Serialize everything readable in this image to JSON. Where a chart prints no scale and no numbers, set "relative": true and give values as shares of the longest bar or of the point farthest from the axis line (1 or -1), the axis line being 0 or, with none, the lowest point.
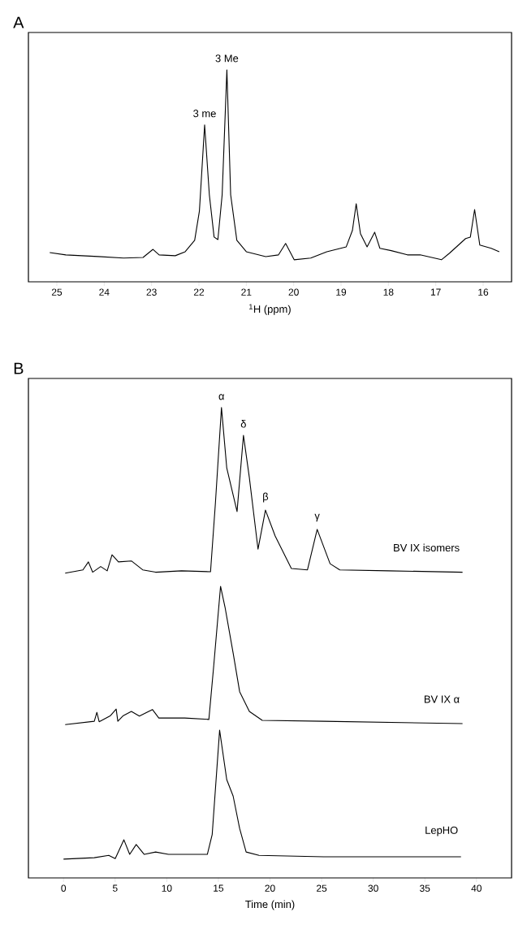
{
  "chart_data": [
    {
      "type": "line",
      "title": "A",
      "xlabel": "$^{1}$H (ppm)",
      "relative": true,
      "xlim": [
        25.6,
        15.4
      ],
      "xticks": [
        25,
        24,
        23,
        22,
        21,
        20,
        19,
        18,
        17,
        16
      ],
      "color": "#000000",
      "x": [
        25.15,
        24.81,
        24.13,
        23.59,
        23.18,
        22.97,
        22.84,
        22.5,
        22.29,
        22.09,
        21.99,
        21.88,
        21.78,
        21.68,
        21.6,
        21.51,
        21.41,
        21.33,
        21.2,
        21.0,
        20.59,
        20.32,
        20.17,
        19.99,
        19.64,
        19.3,
        18.89,
        18.76,
        18.68,
        18.59,
        18.45,
        18.29,
        18.18,
        17.94,
        17.6,
        17.33,
        16.88,
        16.71,
        16.37,
        16.27,
        16.18,
        16.07,
        15.83,
        15.66
      ],
      "values": [
        0.138,
        0.127,
        0.119,
        0.112,
        0.115,
        0.153,
        0.127,
        0.123,
        0.142,
        0.196,
        0.334,
        0.74,
        0.41,
        0.211,
        0.199,
        0.41,
        1.0,
        0.41,
        0.196,
        0.142,
        0.119,
        0.127,
        0.181,
        0.104,
        0.112,
        0.142,
        0.165,
        0.242,
        0.368,
        0.227,
        0.165,
        0.234,
        0.158,
        0.147,
        0.127,
        0.127,
        0.104,
        0.135,
        0.204,
        0.211,
        0.341,
        0.173,
        0.158,
        0.142
      ],
      "annotations": [
        {
          "text": "3 me",
          "x": 21.88,
          "y": 0.74
        },
        {
          "text": "3 Me",
          "x": 21.41,
          "y": 1.0
        }
      ]
    },
    {
      "type": "line",
      "title": "B",
      "xlabel": "Time (min)",
      "relative": true,
      "xlim": [
        -3.4,
        43.4
      ],
      "xticks": [
        0,
        5,
        10,
        15,
        20,
        25,
        30,
        35,
        40
      ],
      "series": [
        {
          "name": "BV IX isomers",
          "color": "#000000",
          "x": [
            0.16,
            1.88,
            2.41,
            2.82,
            3.6,
            4.23,
            4.7,
            5.32,
            6.57,
            7.67,
            8.92,
            11.43,
            14.24,
            14.71,
            15.3,
            15.81,
            16.81,
            17.43,
            18.0,
            18.84,
            19.56,
            20.5,
            22.07,
            23.63,
            24.57,
            25.82,
            26.76,
            31.46,
            38.65
          ],
          "values": [
            0.648,
            0.655,
            0.672,
            0.65,
            0.662,
            0.653,
            0.687,
            0.672,
            0.674,
            0.655,
            0.65,
            0.653,
            0.651,
            0.796,
            1.0,
            0.872,
            0.779,
            0.941,
            0.851,
            0.699,
            0.782,
            0.727,
            0.658,
            0.655,
            0.741,
            0.668,
            0.655,
            0.653,
            0.65
          ]
        },
        {
          "name": "BV IX α",
          "color": "#000000",
          "x": [
            0.16,
            2.98,
            3.23,
            3.45,
            4.55,
            5.1,
            5.26,
            5.79,
            6.57,
            7.35,
            8.61,
            9.23,
            11.74,
            14.08,
            14.55,
            15.21,
            15.65,
            16.43,
            17.06,
            18.0,
            19.25,
            25.2,
            38.65
          ],
          "values": [
            0.326,
            0.333,
            0.352,
            0.332,
            0.345,
            0.359,
            0.333,
            0.345,
            0.354,
            0.344,
            0.358,
            0.34,
            0.34,
            0.337,
            0.451,
            0.62,
            0.575,
            0.478,
            0.396,
            0.354,
            0.335,
            0.333,
            0.328
          ]
        },
        {
          "name": "LepHO",
          "color": "#000000",
          "x": [
            0.0,
            2.98,
            4.38,
            5.01,
            5.85,
            6.41,
            7.04,
            7.82,
            8.92,
            10.17,
            13.93,
            14.4,
            15.12,
            15.81,
            16.43,
            17.06,
            17.69,
            18.94,
            25.2,
            38.5
          ],
          "values": [
            0.04,
            0.043,
            0.048,
            0.041,
            0.081,
            0.05,
            0.071,
            0.05,
            0.055,
            0.05,
            0.05,
            0.092,
            0.314,
            0.209,
            0.174,
            0.105,
            0.055,
            0.048,
            0.045,
            0.045
          ]
        }
      ],
      "annotations": [
        {
          "text": "α",
          "x": 15.3,
          "y": 1.0
        },
        {
          "text": "δ",
          "x": 17.43,
          "y": 0.941
        },
        {
          "text": "β",
          "x": 19.56,
          "y": 0.782
        },
        {
          "text": "γ",
          "x": 24.57,
          "y": 0.741
        }
      ]
    }
  ]
}
